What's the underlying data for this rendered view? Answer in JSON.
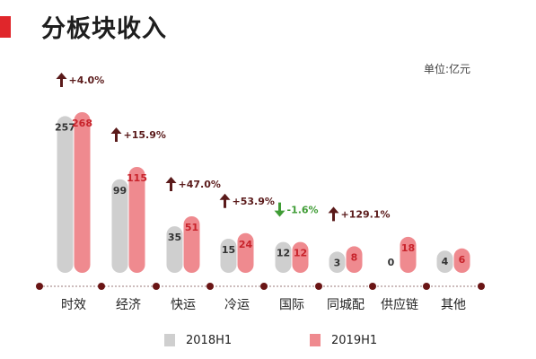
{
  "header": {
    "title": "分板块收入",
    "unit": "单位:亿元"
  },
  "colors": {
    "accent": "#e0262b",
    "bar_2018": "#cfcfcf",
    "bar_2019": "#ef8a8f",
    "label_2018": "#333333",
    "label_2019": "#c8232b",
    "growth_up": "#5a1a1a",
    "growth_down": "#3f9c35",
    "axis": "#9a7a7a",
    "axis_dot": "#6a1515"
  },
  "chart_data": {
    "type": "bar",
    "categories": [
      "时效",
      "经济",
      "快运",
      "冷运",
      "国际",
      "同城配",
      "供应链",
      "其他"
    ],
    "series": [
      {
        "name": "2018H1",
        "values": [
          257,
          99,
          35,
          15,
          12,
          3,
          0,
          4
        ]
      },
      {
        "name": "2019H1",
        "values": [
          268,
          115,
          51,
          24,
          12,
          8,
          18,
          6
        ]
      }
    ],
    "growth": [
      "+4.0%",
      "+15.9%",
      "+47.0%",
      "+53.9%",
      "-1.6%",
      "+129.1%",
      "",
      ""
    ],
    "growth_direction": [
      "up",
      "up",
      "up",
      "up",
      "down",
      "up",
      "",
      ""
    ],
    "legend": [
      "2018H1",
      "2019H1"
    ],
    "legend_position": "bottom",
    "ylabel": "单位:亿元",
    "grid": false
  }
}
